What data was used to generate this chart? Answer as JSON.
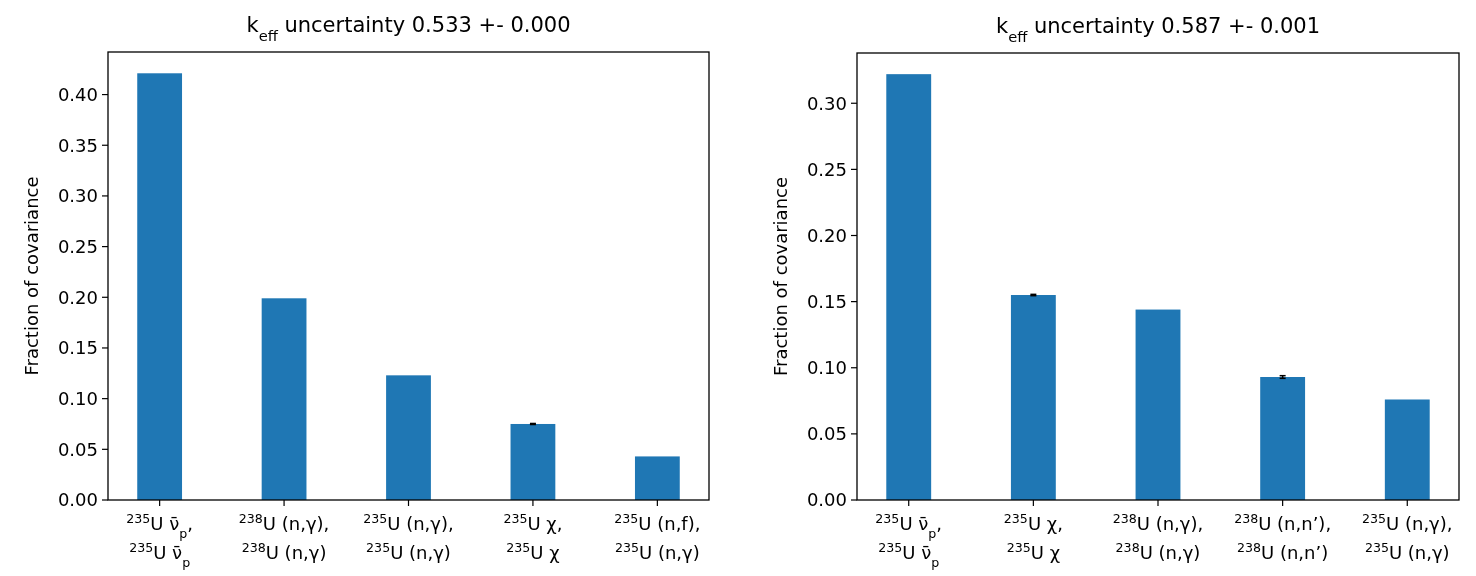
{
  "chart_data": [
    {
      "type": "bar",
      "title": "k$_{eff}$ uncertainty 0.533 +- 0.000",
      "ylabel": "Fraction of covariance",
      "categories": [
        "$^{235}$U ν̄$_{p}$,\n$^{235}$U ν̄$_{p}$",
        "$^{238}$U (n,γ),\n$^{238}$U (n,γ)",
        "$^{235}$U (n,γ),\n$^{235}$U (n,γ)",
        "$^{235}$U χ,\n$^{235}$U χ",
        "$^{235}$U (n,f),\n$^{235}$U (n,γ)"
      ],
      "values": [
        0.421,
        0.199,
        0.123,
        0.075,
        0.043
      ],
      "errors": [
        null,
        null,
        null,
        0.0005,
        null
      ],
      "color": "#1f77b4",
      "ylim": [
        0,
        0.442
      ],
      "yticks": [
        {
          "value": 0,
          "label": "0.00"
        },
        0.05,
        {
          "value": 0.1,
          "label": "0.10"
        },
        0.15,
        {
          "value": 0.2,
          "label": "0.20"
        },
        0.25,
        {
          "value": 0.3,
          "label": "0.30"
        },
        0.35,
        {
          "value": 0.4,
          "label": "0.40"
        }
      ],
      "grid": false
    },
    {
      "type": "bar",
      "title": "k$_{eff}$ uncertainty 0.587 +- 0.001",
      "ylabel": "Fraction of covariance",
      "categories": [
        "$^{235}$U ν̄$_{p}$,\n$^{235}$U ν̄$_{p}$",
        "$^{235}$U χ,\n$^{235}$U χ",
        "$^{238}$U (n,γ),\n$^{238}$U (n,γ)",
        "$^{238}$U (n,n’),\n$^{238}$U (n,n’)",
        "$^{235}$U (n,γ),\n$^{235}$U (n,γ)"
      ],
      "values": [
        0.322,
        0.155,
        0.144,
        0.093,
        0.076
      ],
      "errors": [
        null,
        0.0005,
        null,
        0.001,
        null
      ],
      "color": "#1f77b4",
      "ylim": [
        0,
        0.338
      ],
      "yticks": [
        {
          "value": 0,
          "label": "0.00"
        },
        0.05,
        {
          "value": 0.1,
          "label": "0.10"
        },
        0.15,
        {
          "value": 0.2,
          "label": "0.20"
        },
        0.25,
        {
          "value": 0.3,
          "label": "0.30"
        }
      ],
      "grid": false
    }
  ]
}
